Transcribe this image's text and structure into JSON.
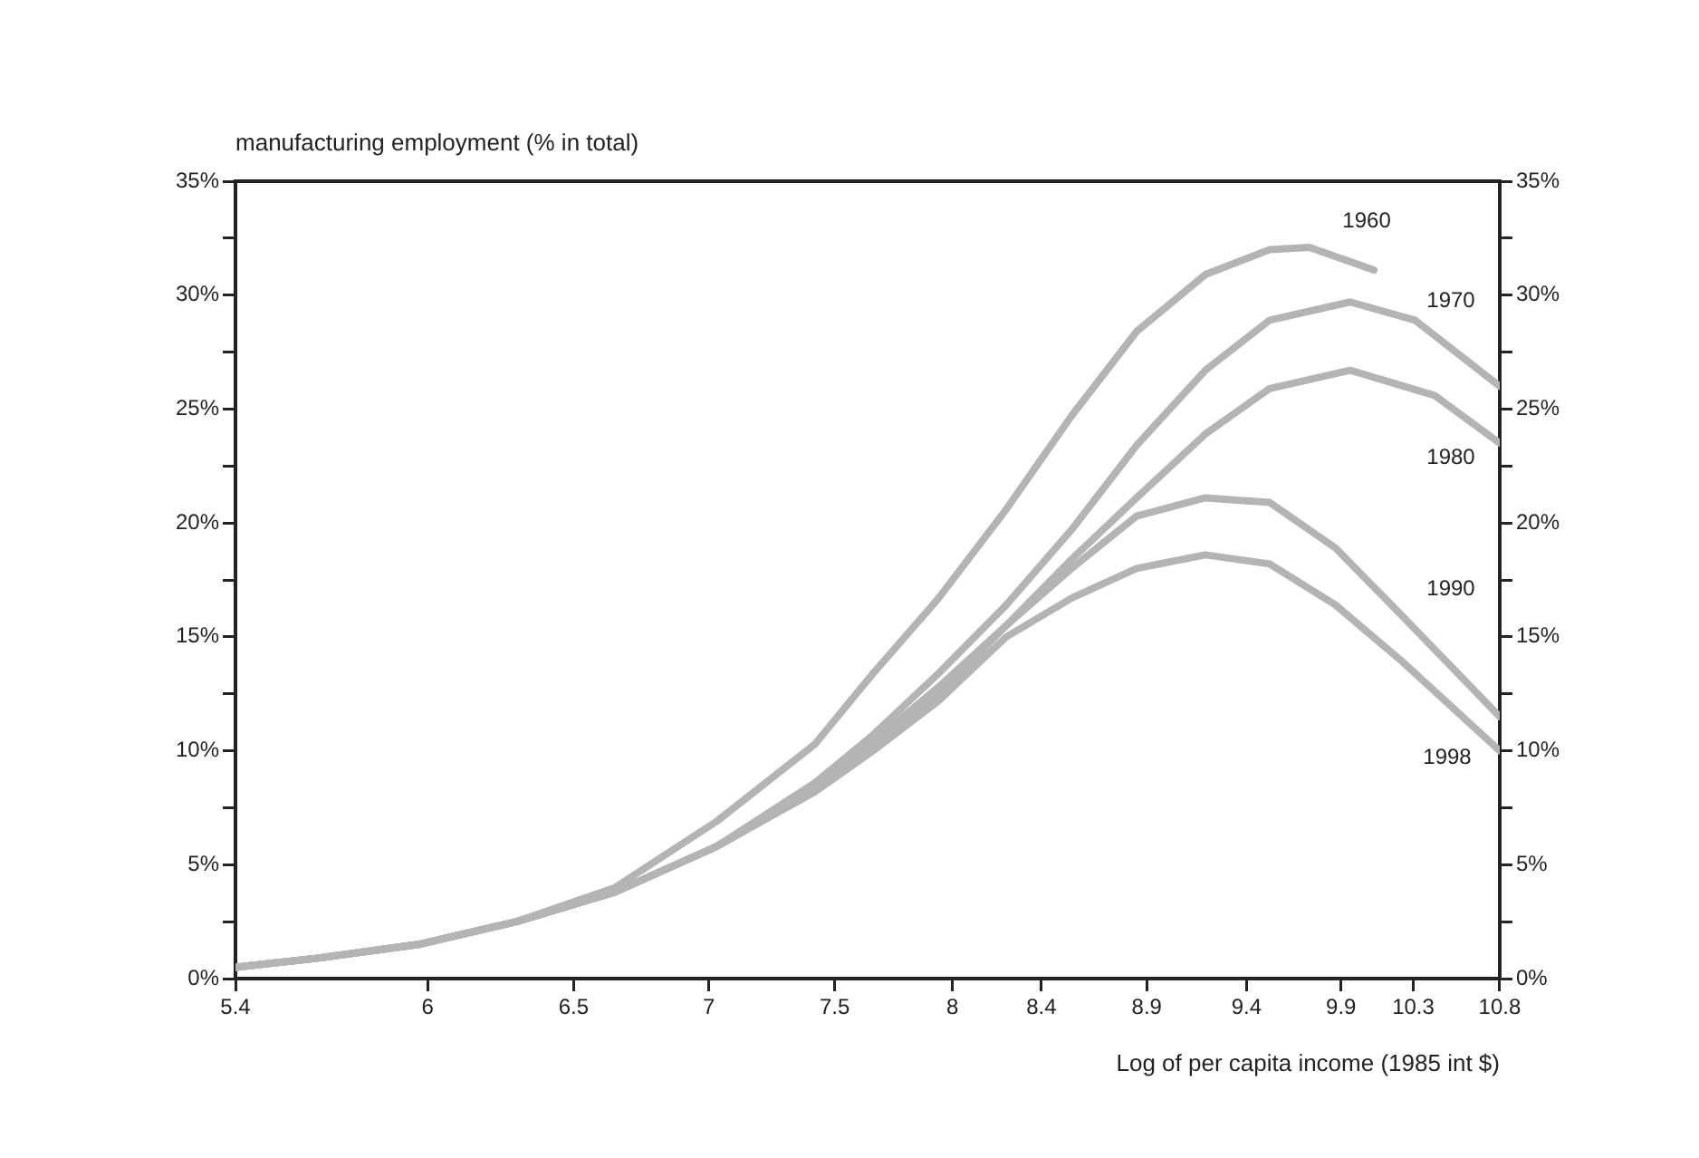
{
  "chart_data": {
    "type": "line",
    "xlabel": "Log of per capita income (1985 int $)",
    "ylabel": "manufacturing employment (% in total)",
    "log": "x",
    "xlim": [
      5.4,
      10.8
    ],
    "xticks": [
      5.4,
      6,
      6.5,
      7,
      7.5,
      8,
      8.4,
      8.9,
      9.4,
      9.9,
      10.3,
      10.8
    ],
    "ylim": [
      0,
      35
    ],
    "yticks": [
      {
        "value": 0,
        "label": "0%"
      },
      {
        "value": 2.5,
        "label": null
      },
      {
        "value": 5,
        "label": "5%"
      },
      {
        "value": 7.5,
        "label": null
      },
      {
        "value": 10,
        "label": "10%"
      },
      {
        "value": 12.5,
        "label": null
      },
      {
        "value": 15,
        "label": "15%"
      },
      {
        "value": 17.5,
        "label": null
      },
      {
        "value": 20,
        "label": "20%"
      },
      {
        "value": 22.5,
        "label": null
      },
      {
        "value": 25,
        "label": "25%"
      },
      {
        "value": 27.5,
        "label": null
      },
      {
        "value": 30,
        "label": "30%"
      },
      {
        "value": 32.5,
        "label": null
      },
      {
        "value": 35,
        "label": "35%"
      }
    ],
    "y2lim": [
      0,
      35
    ],
    "y2ticks": [
      {
        "value": 0,
        "label": "0%"
      },
      {
        "value": 2.5,
        "label": null
      },
      {
        "value": 5,
        "label": "5%"
      },
      {
        "value": 7.5,
        "label": null
      },
      {
        "value": 10,
        "label": "10%"
      },
      {
        "value": 12.5,
        "label": null
      },
      {
        "value": 15,
        "label": "15%"
      },
      {
        "value": 17.5,
        "label": null
      },
      {
        "value": 20,
        "label": "20%"
      },
      {
        "value": 22.5,
        "label": null
      },
      {
        "value": 25,
        "label": "25%"
      },
      {
        "value": 27.5,
        "label": null
      },
      {
        "value": 30,
        "label": "30%"
      },
      {
        "value": 32.5,
        "label": null
      },
      {
        "value": 35,
        "label": "35%"
      }
    ],
    "grid": false,
    "legend": false,
    "marker": "none",
    "line_style": "solid",
    "series": [
      {
        "name": "1960",
        "color": "#b4b4b4",
        "x": [
          5.4,
          5.65,
          5.97,
          6.3,
          6.65,
          7.03,
          7.42,
          7.66,
          7.94,
          8.24,
          8.54,
          8.85,
          9.19,
          9.52,
          9.73,
          10.08
        ],
        "values": [
          0.5,
          0.9,
          1.5,
          2.5,
          4.0,
          6.9,
          10.3,
          13.4,
          16.7,
          20.6,
          24.7,
          28.4,
          30.9,
          32.0,
          32.1,
          31.1
        ]
      },
      {
        "name": "1970",
        "color": "#b4b4b4",
        "x": [
          5.4,
          5.65,
          5.97,
          6.3,
          6.65,
          7.03,
          7.42,
          7.66,
          7.94,
          8.24,
          8.54,
          8.85,
          9.19,
          9.52,
          9.95,
          10.31,
          10.8
        ],
        "values": [
          0.5,
          0.9,
          1.5,
          2.5,
          3.8,
          5.8,
          8.6,
          10.7,
          13.4,
          16.4,
          19.7,
          23.4,
          26.7,
          28.9,
          29.7,
          28.9,
          26.0
        ]
      },
      {
        "name": "1980",
        "color": "#b4b4b4",
        "x": [
          5.4,
          5.65,
          5.97,
          6.3,
          6.65,
          7.03,
          7.42,
          7.66,
          7.94,
          8.24,
          8.54,
          8.85,
          9.19,
          9.52,
          9.95,
          10.42,
          10.8
        ],
        "values": [
          0.5,
          0.9,
          1.5,
          2.5,
          3.8,
          5.8,
          8.4,
          10.4,
          12.8,
          15.5,
          18.4,
          21.1,
          23.9,
          25.9,
          26.7,
          25.6,
          23.5
        ]
      },
      {
        "name": "1990",
        "color": "#b4b4b4",
        "x": [
          5.4,
          5.65,
          5.97,
          6.3,
          6.65,
          7.03,
          7.42,
          7.66,
          7.94,
          8.24,
          8.54,
          8.85,
          9.19,
          9.52,
          9.87,
          10.24,
          10.8
        ],
        "values": [
          0.5,
          0.9,
          1.5,
          2.5,
          3.8,
          5.8,
          8.3,
          10.3,
          12.5,
          15.5,
          18.0,
          20.3,
          21.1,
          20.9,
          18.9,
          15.9,
          11.5
        ]
      },
      {
        "name": "1998",
        "color": "#b4b4b4",
        "x": [
          5.4,
          5.65,
          5.97,
          6.3,
          6.65,
          7.03,
          7.42,
          7.66,
          7.94,
          8.24,
          8.54,
          8.85,
          9.19,
          9.52,
          9.87,
          10.24,
          10.8
        ],
        "values": [
          0.5,
          0.9,
          1.5,
          2.5,
          3.8,
          5.8,
          8.2,
          10.0,
          12.2,
          15.0,
          16.7,
          18.0,
          18.6,
          18.2,
          16.4,
          13.9,
          10.0
        ]
      }
    ]
  }
}
